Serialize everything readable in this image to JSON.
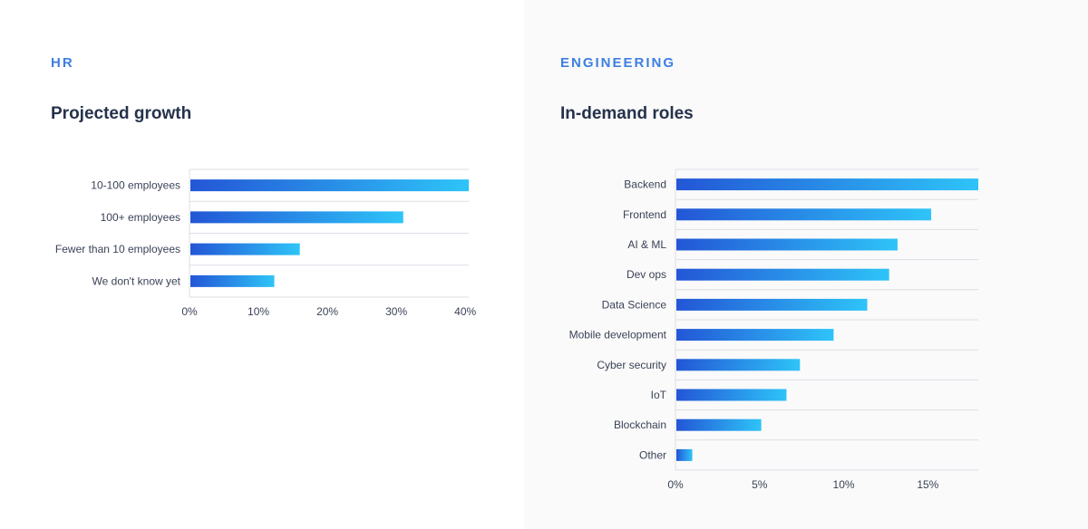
{
  "colors": {
    "bar_start": "#2356d6",
    "bar_end": "#2ec4f8",
    "accent": "#3d7fe0",
    "title": "#26324b",
    "grid": "#dcdfe5"
  },
  "chart_data": [
    {
      "type": "bar",
      "orientation": "horizontal",
      "section": "HR",
      "title": "Projected growth",
      "categories": [
        "10-100 employees",
        "100+ employees",
        "Fewer than 10 employees",
        "We don't know yet"
      ],
      "values": [
        40.5,
        31,
        16,
        12.3
      ],
      "xlim": [
        0,
        40.5
      ],
      "ticks": [
        0,
        10,
        20,
        30,
        40
      ],
      "tick_labels": [
        "0%",
        "10%",
        "20%",
        "30%",
        "40%"
      ]
    },
    {
      "type": "bar",
      "orientation": "horizontal",
      "section": "ENGINEERING",
      "title": "In-demand roles",
      "categories": [
        "Backend",
        "Frontend",
        "AI & ML",
        "Dev ops",
        "Data Science",
        "Mobile development",
        "Cyber security",
        "IoT",
        "Blockchain",
        "Other"
      ],
      "values": [
        18,
        15.2,
        13.2,
        12.7,
        11.4,
        9.4,
        7.4,
        6.6,
        5.1,
        1
      ],
      "xlim": [
        0,
        18
      ],
      "ticks": [
        0,
        5,
        10,
        15
      ],
      "tick_labels": [
        "0%",
        "5%",
        "10%",
        "15%"
      ]
    }
  ]
}
